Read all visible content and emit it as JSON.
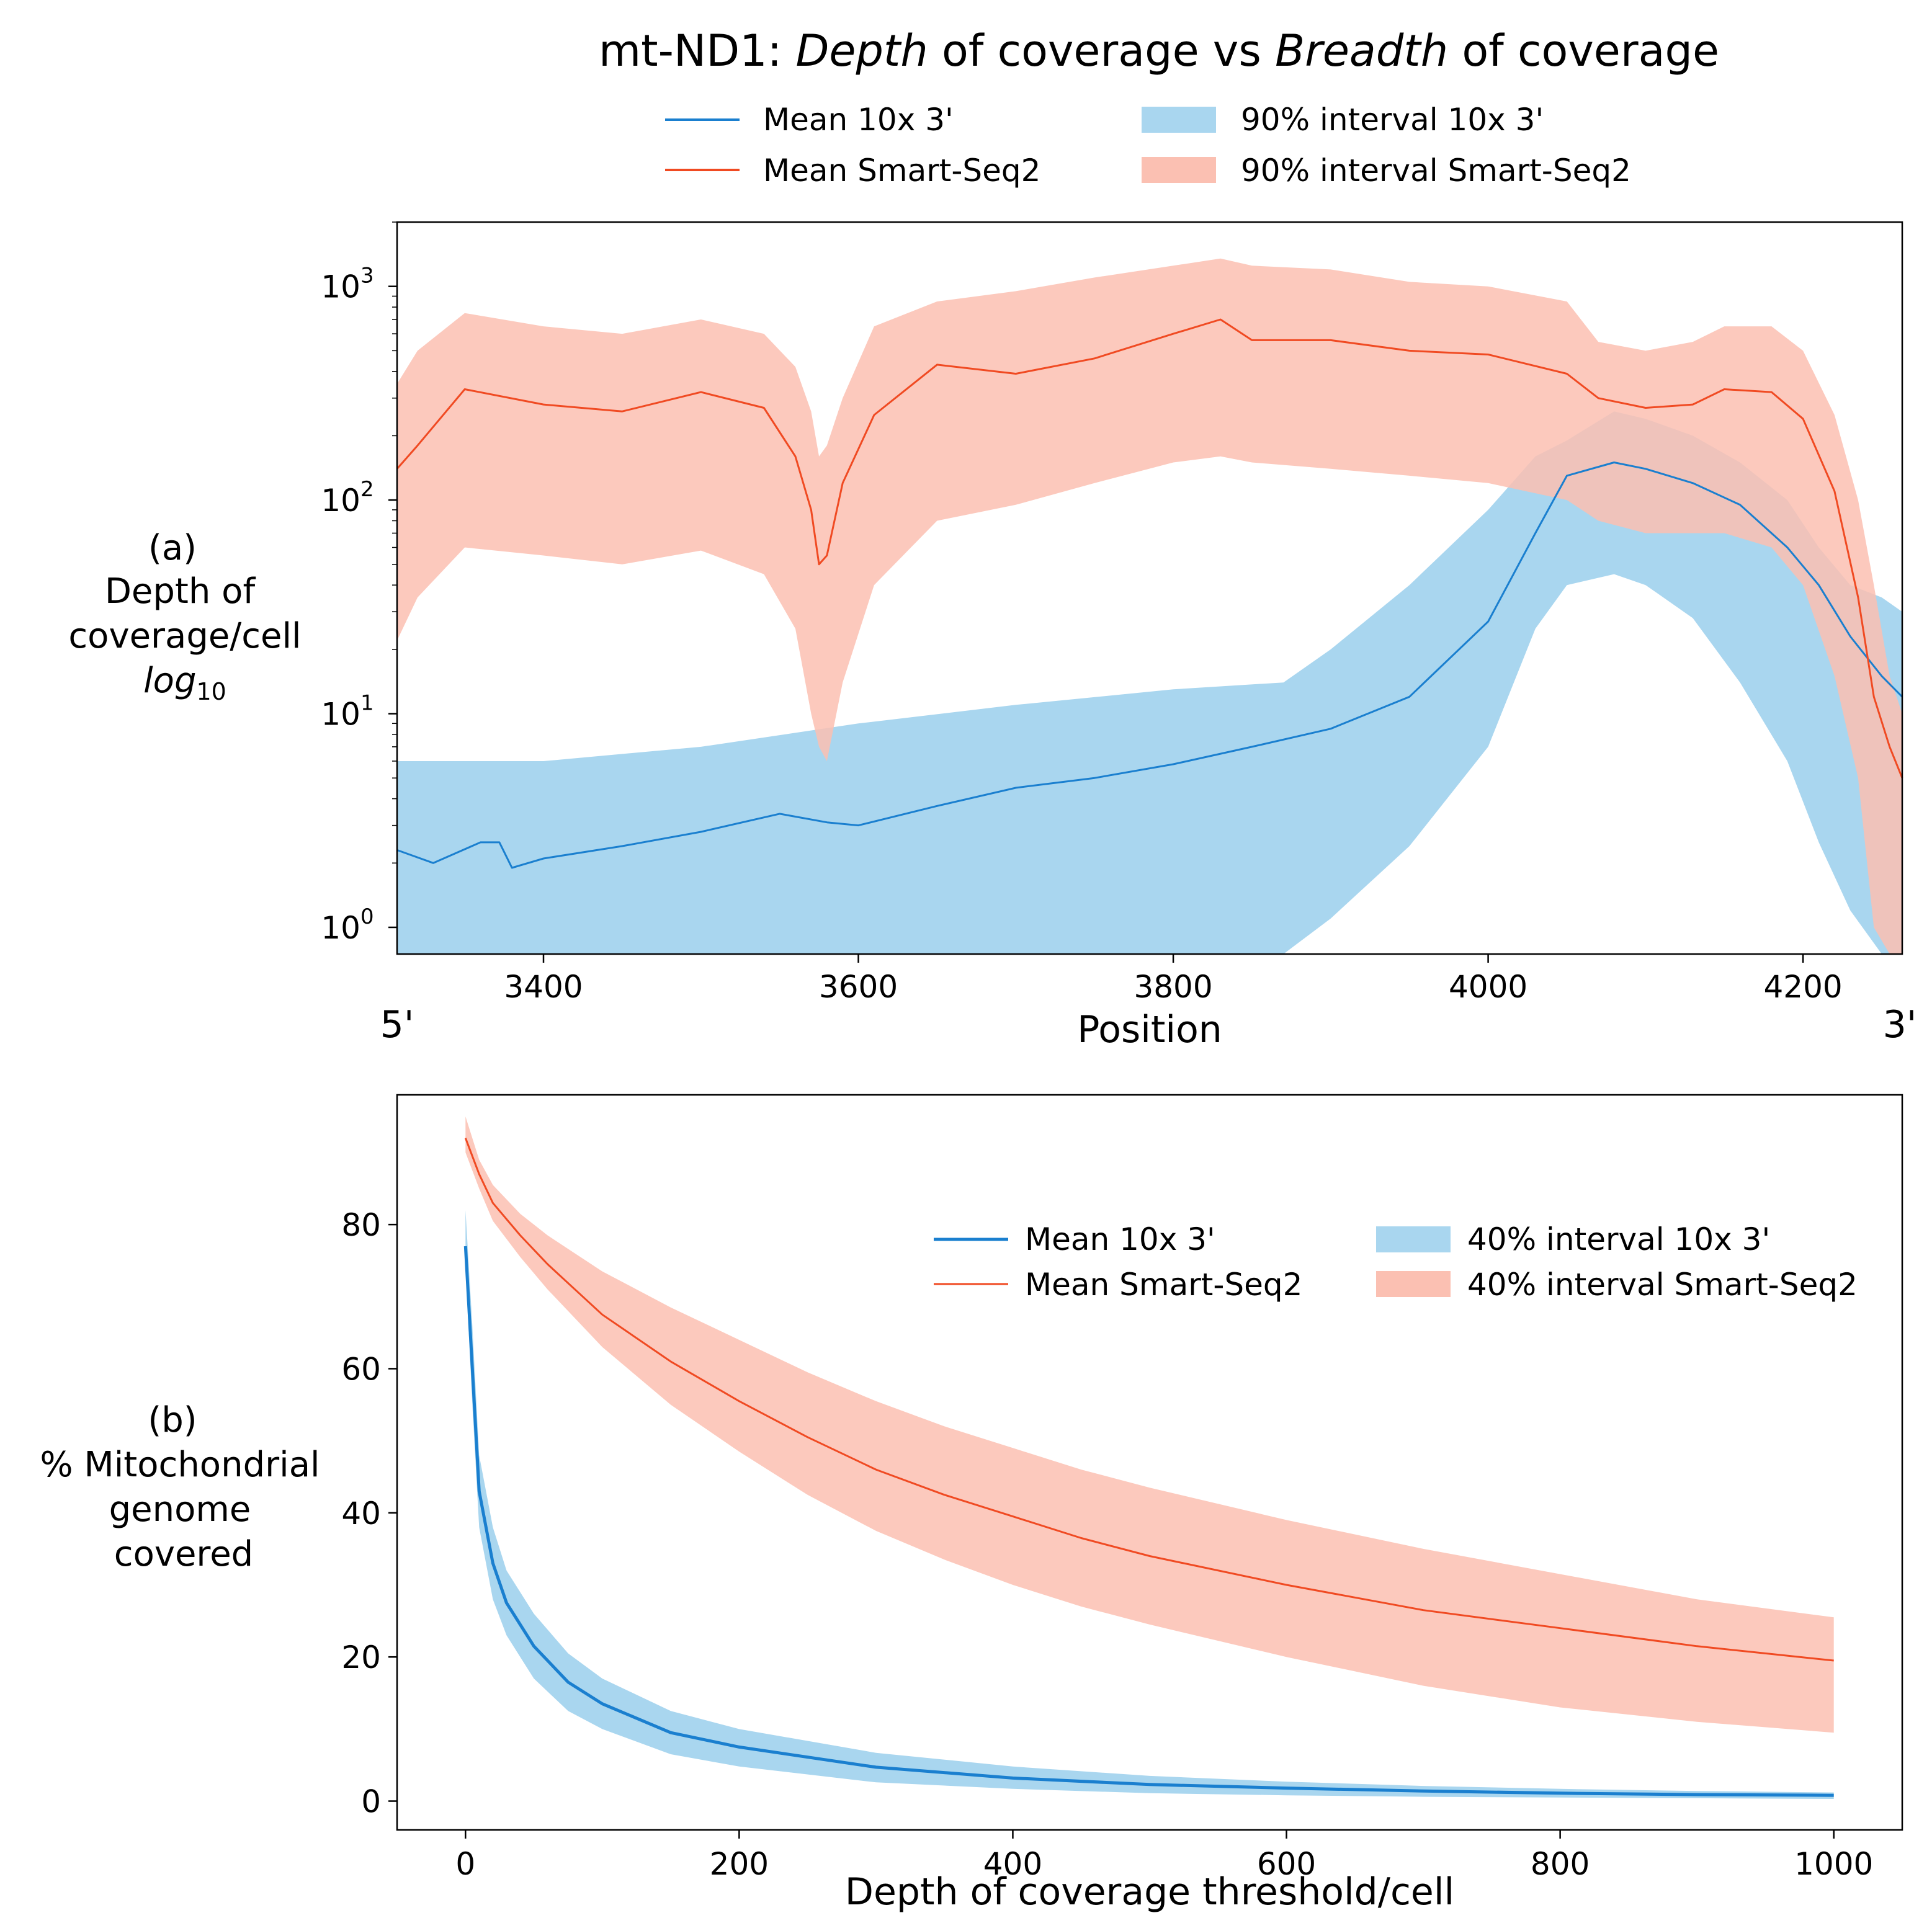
{
  "colors": {
    "blue_line": "#1a7fcf",
    "blue_band": "#a9d6ef",
    "red_line": "#f04a22",
    "red_band": "#fbc0b2"
  },
  "chart_data": [
    {
      "type": "line",
      "title_parts": [
        "mt-ND1: ",
        "Depth",
        " of coverage vs ",
        "Breadth",
        " of coverage"
      ],
      "panel_label": "(a)",
      "ylabel_lines": [
        "Depth of",
        "coverage/cell"
      ],
      "ylabel_log": "log",
      "ylabel_log_sub": "10",
      "xlabel": "Position",
      "x_end_labels": [
        "5'",
        "3'"
      ],
      "yscale": "log10",
      "xlim": [
        3307,
        4263
      ],
      "ylim": [
        0.75,
        2000
      ],
      "x_ticks": [
        3400,
        3600,
        3800,
        4000,
        4200
      ],
      "y_ticks": [
        {
          "value": 1,
          "base": "10",
          "exp": "0"
        },
        {
          "value": 10,
          "base": "10",
          "exp": "1"
        },
        {
          "value": 100,
          "base": "10",
          "exp": "2"
        },
        {
          "value": 1000,
          "base": "10",
          "exp": "3"
        }
      ],
      "legend": [
        "Mean 10x 3'",
        "90% interval 10x 3'",
        "Mean Smart-Seq2",
        "90% interval Smart-Seq2"
      ],
      "series": [
        {
          "name": "Mean 10x 3'",
          "kind": "line",
          "color_key": "blue_line",
          "x": [
            3307,
            3330,
            3360,
            3372,
            3380,
            3400,
            3450,
            3500,
            3550,
            3580,
            3600,
            3650,
            3700,
            3750,
            3800,
            3850,
            3900,
            3950,
            4000,
            4030,
            4050,
            4080,
            4100,
            4130,
            4160,
            4190,
            4210,
            4230,
            4250,
            4263
          ],
          "y": [
            2.3,
            2.0,
            2.5,
            2.5,
            1.9,
            2.1,
            2.4,
            2.8,
            3.4,
            3.1,
            3.0,
            3.7,
            4.5,
            5.0,
            5.8,
            7.0,
            8.5,
            12,
            27,
            70,
            130,
            150,
            140,
            120,
            95,
            60,
            40,
            23,
            15,
            12
          ]
        },
        {
          "name": "90% interval 10x 3'",
          "kind": "band",
          "color_key": "blue_band",
          "x": [
            3307,
            3380,
            3400,
            3500,
            3600,
            3700,
            3800,
            3870,
            3900,
            3950,
            4000,
            4030,
            4050,
            4080,
            4100,
            4130,
            4160,
            4190,
            4210,
            4230,
            4250,
            4263
          ],
          "lower": [
            0.5,
            0.5,
            0.5,
            0.5,
            0.5,
            0.5,
            0.5,
            0.5,
            1.1,
            2.4,
            7,
            25,
            40,
            45,
            40,
            28,
            14,
            6,
            2.5,
            1.2,
            0.6,
            0.5
          ],
          "upper": [
            6,
            6,
            6,
            7,
            9,
            11,
            13,
            14,
            20,
            40,
            90,
            160,
            190,
            260,
            240,
            200,
            150,
            100,
            60,
            40,
            35,
            30
          ]
        },
        {
          "name": "Mean Smart-Seq2",
          "kind": "line",
          "color_key": "red_line",
          "x": [
            3307,
            3320,
            3350,
            3400,
            3450,
            3500,
            3540,
            3560,
            3570,
            3575,
            3580,
            3590,
            3610,
            3650,
            3700,
            3750,
            3800,
            3830,
            3850,
            3900,
            3950,
            4000,
            4050,
            4070,
            4100,
            4130,
            4150,
            4180,
            4200,
            4220,
            4235,
            4245,
            4255,
            4263
          ],
          "y": [
            140,
            180,
            330,
            280,
            260,
            320,
            270,
            160,
            90,
            50,
            55,
            120,
            250,
            430,
            390,
            460,
            600,
            700,
            560,
            560,
            500,
            480,
            390,
            300,
            270,
            280,
            330,
            320,
            240,
            110,
            35,
            12,
            7,
            5
          ]
        },
        {
          "name": "90% interval Smart-Seq2",
          "kind": "band",
          "color_key": "red_band",
          "x": [
            3307,
            3320,
            3350,
            3400,
            3450,
            3500,
            3540,
            3560,
            3570,
            3575,
            3580,
            3590,
            3610,
            3650,
            3700,
            3750,
            3800,
            3830,
            3850,
            3900,
            3950,
            4000,
            4050,
            4070,
            4100,
            4130,
            4150,
            4180,
            4200,
            4220,
            4235,
            4245,
            4255,
            4263
          ],
          "lower": [
            22,
            35,
            60,
            55,
            50,
            58,
            45,
            25,
            10,
            7,
            6,
            14,
            40,
            80,
            95,
            120,
            150,
            160,
            150,
            140,
            130,
            120,
            100,
            80,
            70,
            70,
            70,
            60,
            40,
            15,
            5,
            1,
            0.6,
            0.5
          ],
          "upper": [
            350,
            500,
            750,
            650,
            600,
            700,
            600,
            420,
            260,
            160,
            180,
            300,
            650,
            850,
            950,
            1100,
            1250,
            1350,
            1250,
            1200,
            1050,
            1000,
            850,
            550,
            500,
            550,
            650,
            650,
            500,
            250,
            100,
            40,
            15,
            10
          ]
        }
      ]
    },
    {
      "type": "line",
      "panel_label": "(b)",
      "ylabel_lines": [
        "% Mitochondrial",
        "genome",
        "covered"
      ],
      "xlabel": "Depth of coverage threshold/cell",
      "xlim": [
        -50,
        1050
      ],
      "ylim": [
        -4,
        98
      ],
      "x_ticks": [
        0,
        200,
        400,
        600,
        800,
        1000
      ],
      "y_ticks": [
        0,
        20,
        40,
        60,
        80
      ],
      "legend": [
        "Mean 10x 3'",
        "40% interval 10x 3'",
        "Mean Smart-Seq2",
        "40% interval Smart-Seq2"
      ],
      "series": [
        {
          "name": "Mean 10x 3'",
          "kind": "line",
          "color_key": "blue_line",
          "x": [
            0,
            5,
            10,
            20,
            30,
            50,
            75,
            100,
            150,
            200,
            300,
            400,
            500,
            600,
            700,
            800,
            900,
            1000
          ],
          "y": [
            77,
            60,
            43,
            33,
            27.5,
            21.5,
            16.5,
            13.5,
            9.5,
            7.5,
            4.7,
            3.2,
            2.3,
            1.8,
            1.4,
            1.1,
            0.9,
            0.8
          ]
        },
        {
          "name": "40% interval 10x 3'",
          "kind": "band",
          "color_key": "blue_band",
          "x": [
            0,
            5,
            10,
            20,
            30,
            50,
            75,
            100,
            150,
            200,
            300,
            400,
            500,
            600,
            700,
            800,
            900,
            1000
          ],
          "lower": [
            74,
            55,
            38,
            28,
            23,
            17,
            12.5,
            10,
            6.5,
            4.8,
            2.6,
            1.7,
            1.1,
            0.8,
            0.6,
            0.5,
            0.4,
            0.3
          ],
          "upper": [
            82,
            66,
            48,
            38,
            32,
            26,
            20.5,
            17,
            12.5,
            10,
            6.7,
            4.8,
            3.5,
            2.7,
            2.1,
            1.7,
            1.4,
            1.2
          ]
        },
        {
          "name": "Mean Smart-Seq2",
          "kind": "line",
          "color_key": "red_line",
          "x": [
            0,
            10,
            20,
            40,
            60,
            80,
            100,
            150,
            200,
            250,
            300,
            350,
            400,
            450,
            500,
            600,
            700,
            800,
            900,
            1000
          ],
          "y": [
            92,
            87,
            83,
            78.5,
            74.5,
            71,
            67.5,
            61,
            55.5,
            50.5,
            46,
            42.5,
            39.5,
            36.5,
            34,
            30,
            26.5,
            24,
            21.5,
            19.5
          ]
        },
        {
          "name": "40% interval Smart-Seq2",
          "kind": "band",
          "color_key": "red_band",
          "x": [
            0,
            10,
            20,
            40,
            60,
            80,
            100,
            150,
            200,
            250,
            300,
            350,
            400,
            450,
            500,
            600,
            700,
            800,
            900,
            1000
          ],
          "lower": [
            90,
            85,
            80.5,
            75.5,
            71,
            67,
            63,
            55,
            48.5,
            42.5,
            37.5,
            33.5,
            30,
            27,
            24.5,
            20,
            16,
            13,
            11,
            9.5
          ],
          "upper": [
            95,
            89,
            85.5,
            81.5,
            78.5,
            76,
            73.5,
            68.5,
            64,
            59.5,
            55.5,
            52,
            49,
            46,
            43.5,
            39,
            35,
            31.5,
            28,
            25.5
          ]
        }
      ]
    }
  ]
}
